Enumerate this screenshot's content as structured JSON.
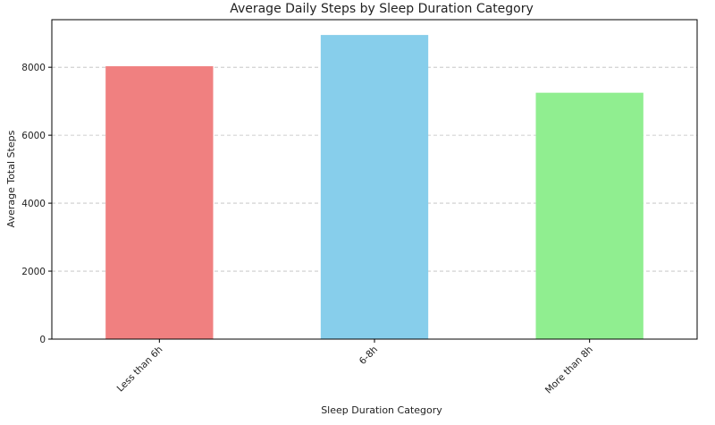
{
  "chart_data": {
    "type": "bar",
    "title": "Average Daily Steps by Sleep Duration Category",
    "xlabel": "Sleep Duration Category",
    "ylabel": "Average Total Steps",
    "categories": [
      "Less than 6h",
      "6-8h",
      "More than 8h"
    ],
    "values": [
      8030,
      8950,
      7250
    ],
    "colors": [
      "#f08080",
      "#87ceeb",
      "#90ee90"
    ],
    "ylim": [
      0,
      9400
    ],
    "yticks": [
      0,
      2000,
      4000,
      6000,
      8000
    ],
    "grid": "y-dashed",
    "x_tick_rotation": "45deg"
  }
}
